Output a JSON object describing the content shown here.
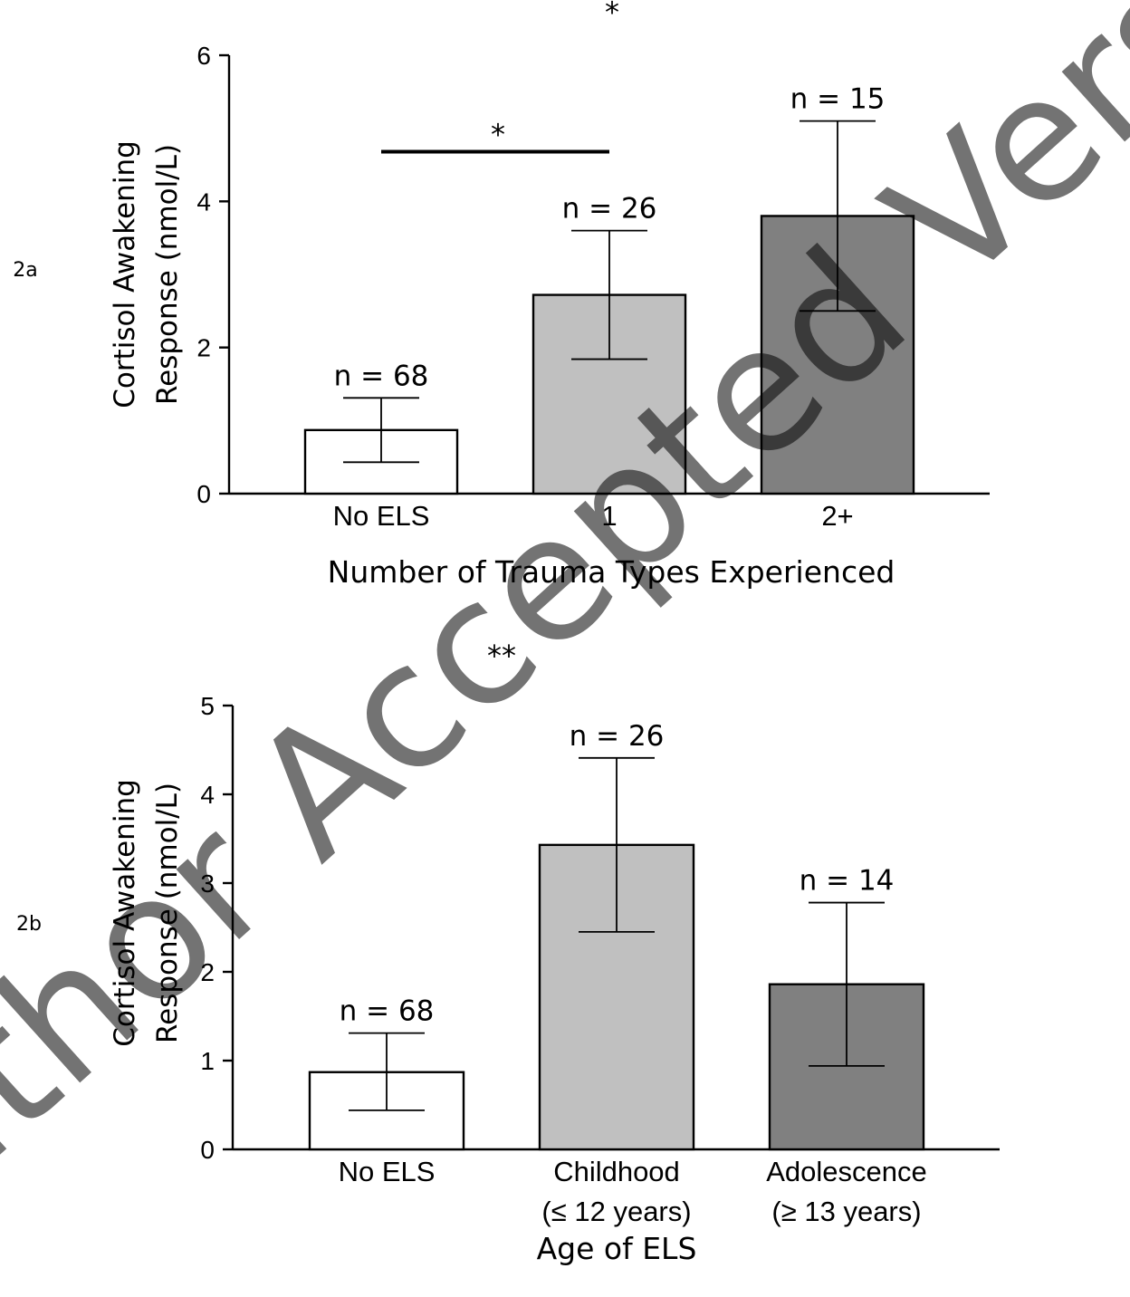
{
  "watermark": "Author Accepted Version",
  "colors": {
    "bar_no_els": "#ffffff",
    "bar_mid": "#c0c0c0",
    "bar_dark": "#808080",
    "stroke": "#000000",
    "watermark": "#d9d9d9"
  },
  "chart_data": [
    {
      "panel_label": "2a",
      "type": "bar",
      "categories": [
        "No ELS",
        "1",
        "2+"
      ],
      "values": [
        0.87,
        2.72,
        3.8
      ],
      "error_low": [
        0.43,
        1.84,
        2.5
      ],
      "error_high": [
        1.31,
        3.6,
        5.1
      ],
      "n_labels": [
        "n = 68",
        "n = 26",
        "n = 15"
      ],
      "bar_colors": [
        "#ffffff",
        "#c0c0c0",
        "#808080"
      ],
      "ylim": [
        0,
        6
      ],
      "yticks": [
        0,
        2,
        4,
        6
      ],
      "ylabel_line1": "Cortisol Awakening",
      "ylabel_line2": "Response (nmol/L)",
      "xlabel": "Number of Trauma Types Experienced",
      "significance": [
        {
          "from": 0,
          "to": 1,
          "label": "*",
          "y": 4.68,
          "bar": true
        },
        {
          "label": "*",
          "y": 6.45,
          "at": 1,
          "bar": false
        }
      ]
    },
    {
      "panel_label": "2b",
      "type": "bar",
      "categories": [
        [
          "No ELS"
        ],
        [
          "Childhood",
          "(≤ 12 years)"
        ],
        [
          "Adolescence",
          "(≥ 13 years)"
        ]
      ],
      "values": [
        0.87,
        3.43,
        1.86
      ],
      "error_low": [
        0.44,
        2.45,
        0.94
      ],
      "error_high": [
        1.31,
        4.41,
        2.78
      ],
      "n_labels": [
        "n = 68",
        "n = 26",
        "n = 14"
      ],
      "bar_colors": [
        "#ffffff",
        "#c0c0c0",
        "#808080"
      ],
      "ylim": [
        0,
        5
      ],
      "yticks": [
        0,
        1,
        2,
        3,
        4,
        5
      ],
      "ylabel_line1": "Cortisol Awakening",
      "ylabel_line2": "Response (nmol/L)",
      "xlabel": "Age of ELS",
      "significance": [
        {
          "label": "**",
          "y": 5.45,
          "at": 0.5,
          "bar": false
        }
      ]
    }
  ]
}
